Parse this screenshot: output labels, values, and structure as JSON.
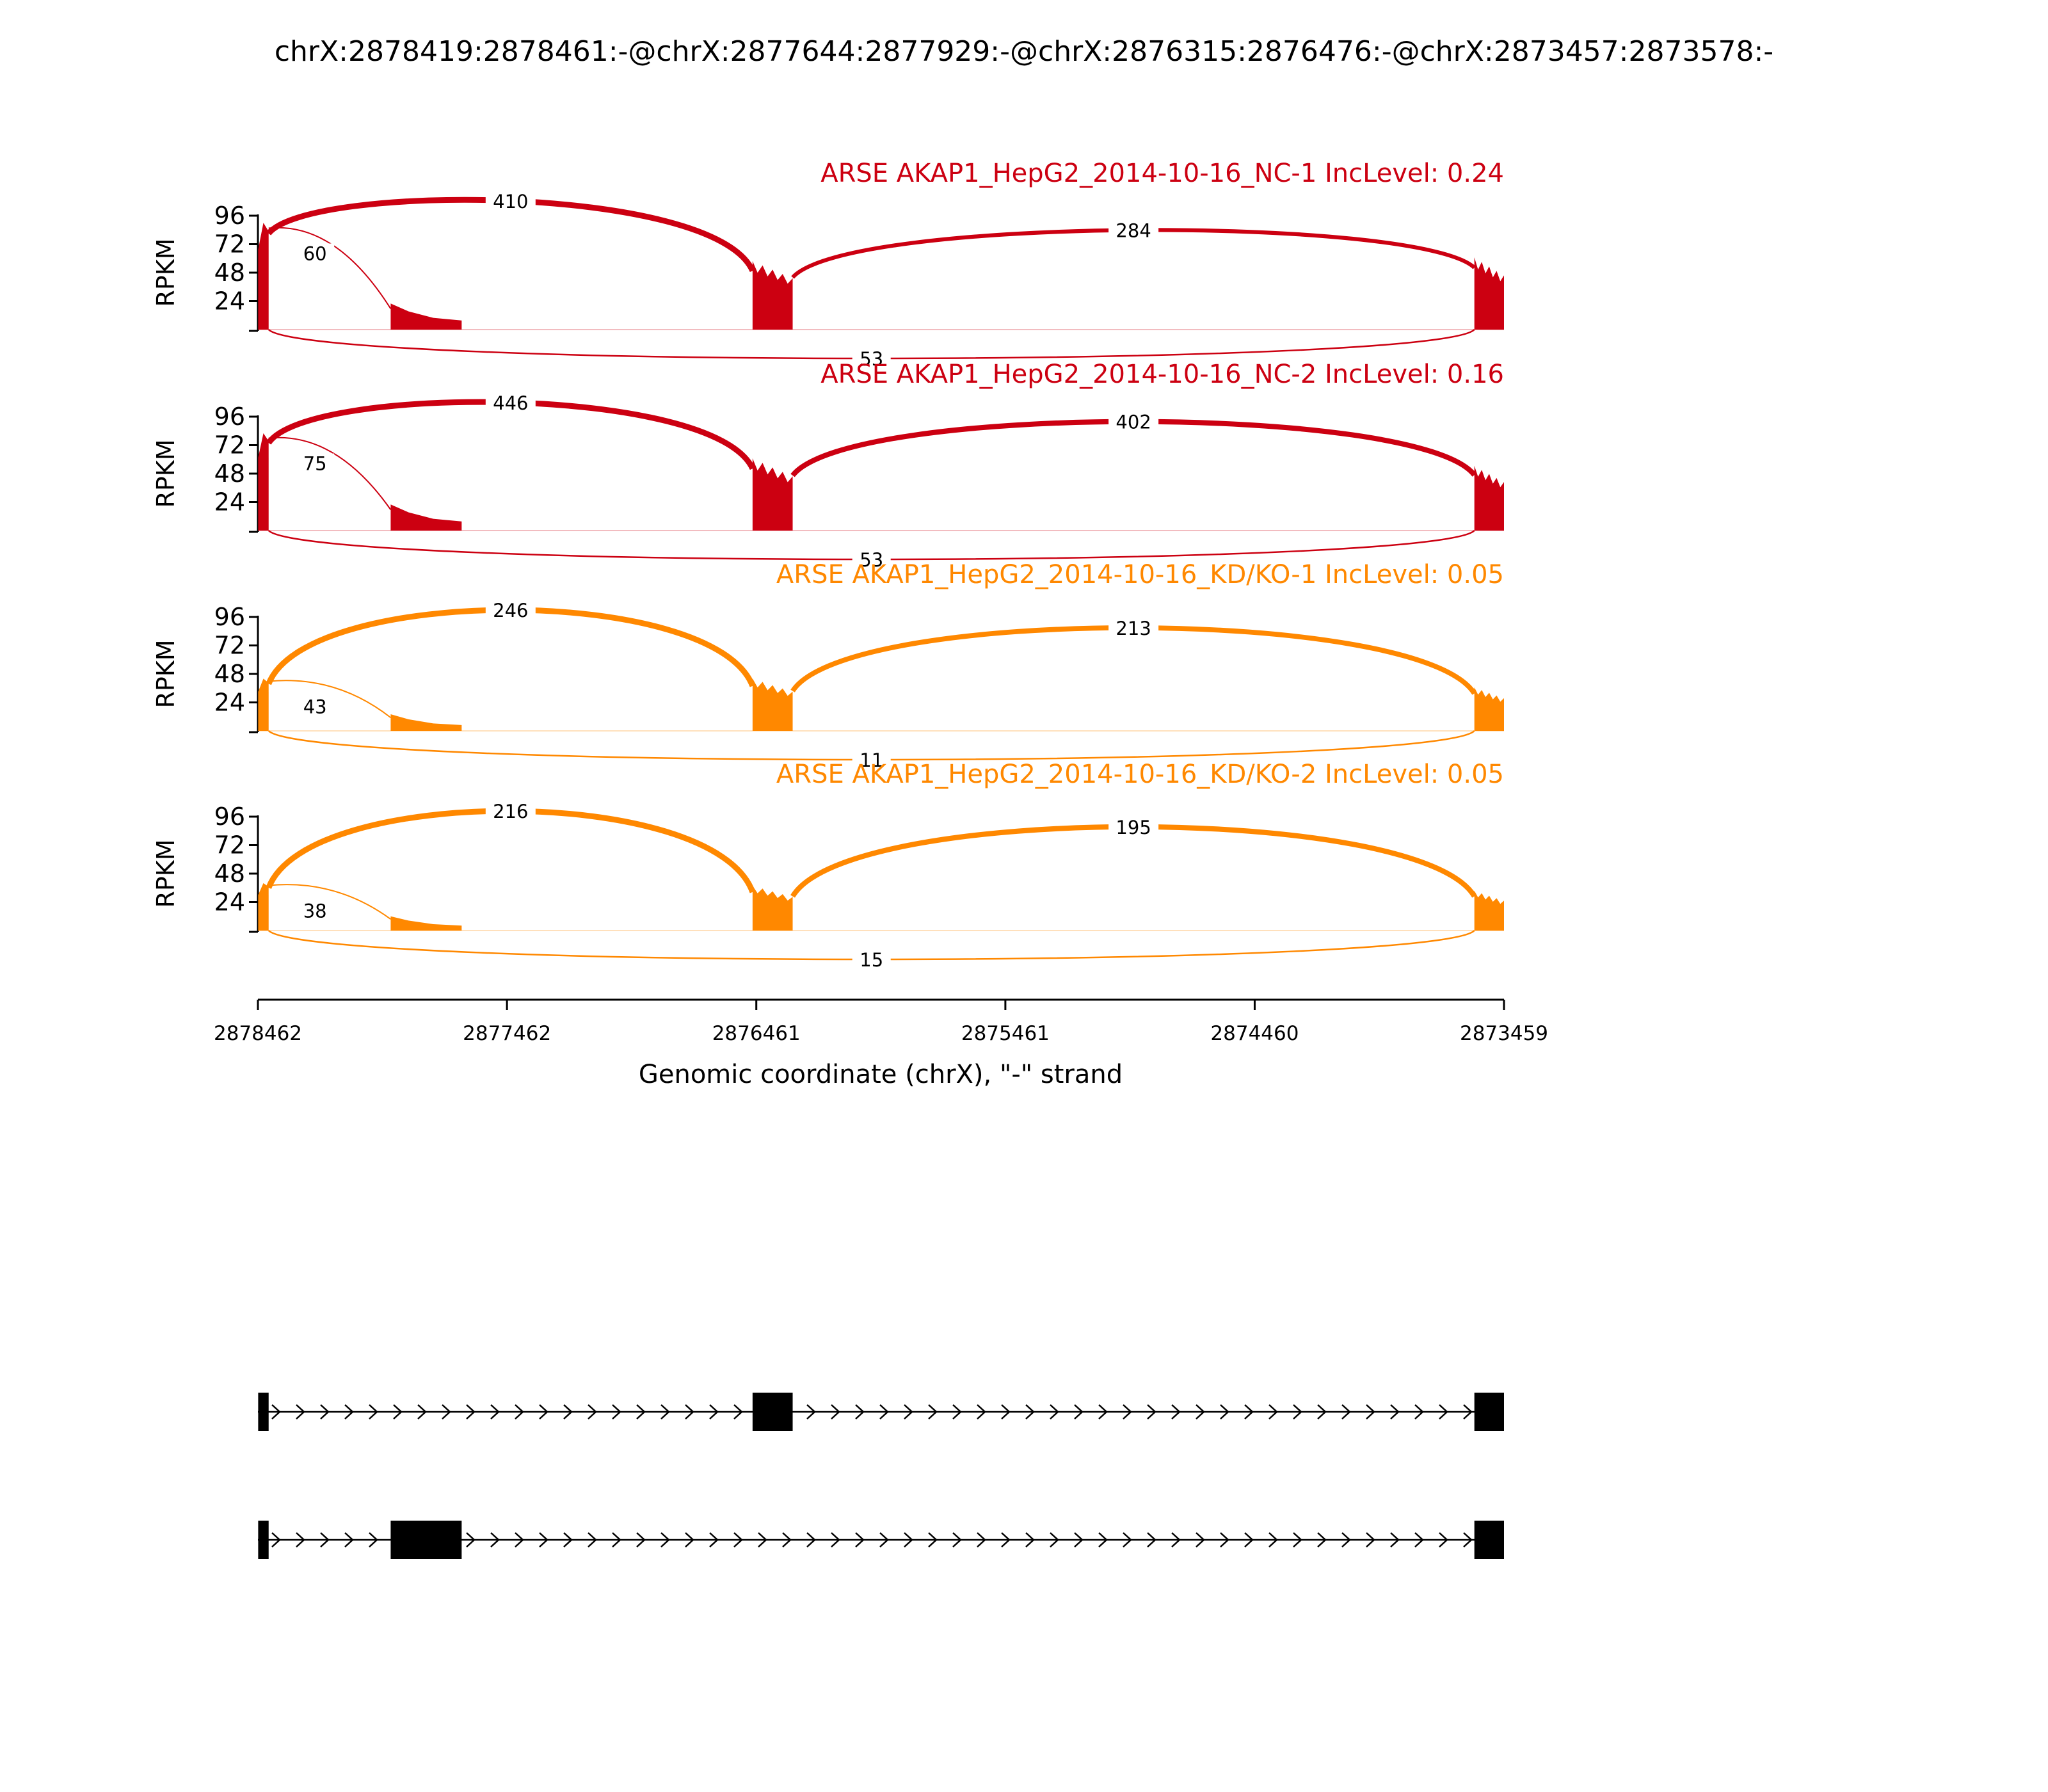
{
  "chart_data": {
    "type": "sashimi",
    "title": "chrX:2878419:2878461:-@chrX:2877644:2877929:-@chrX:2876315:2876476:-@chrX:2873457:2873578:-",
    "ylabel": "RPKM",
    "xlabel": "Genomic coordinate (chrX), \"-\" strand",
    "xlim": [
      2878462,
      2873459
    ],
    "xticks": [
      "2878462",
      "2877462",
      "2876461",
      "2875461",
      "2874460",
      "2873459"
    ],
    "yticks": [
      "24",
      "48",
      "72",
      "96"
    ],
    "ylim": [
      0,
      96
    ],
    "exons": [
      {
        "start": 2878461,
        "end": 2878419
      },
      {
        "start": 2877929,
        "end": 2877644
      },
      {
        "start": 2876476,
        "end": 2876315
      },
      {
        "start": 2873578,
        "end": 2873459
      }
    ],
    "panels": [
      {
        "name": "ARSE AKAP1_HepG2_2014-10-16_NC-1 IncLevel: 0.24",
        "color": "#cc0011",
        "coverage": [
          90,
          22,
          55,
          58
        ],
        "junctions": [
          {
            "from": 2878419,
            "to": 2876476,
            "count": "410",
            "side": "above"
          },
          {
            "from": 2878419,
            "to": 2877929,
            "count": "60",
            "side": "above"
          },
          {
            "from": 2876315,
            "to": 2873578,
            "count": "284",
            "side": "above"
          },
          {
            "from": 2878419,
            "to": 2873578,
            "count": "53",
            "side": "below"
          }
        ]
      },
      {
        "name": "ARSE AKAP1_HepG2_2014-10-16_NC-2 IncLevel: 0.16",
        "color": "#cc0011",
        "coverage": [
          82,
          22,
          58,
          52
        ],
        "junctions": [
          {
            "from": 2878419,
            "to": 2876476,
            "count": "446",
            "side": "above"
          },
          {
            "from": 2878419,
            "to": 2877929,
            "count": "75",
            "side": "above"
          },
          {
            "from": 2876315,
            "to": 2873578,
            "count": "402",
            "side": "above"
          },
          {
            "from": 2878419,
            "to": 2873578,
            "count": "53",
            "side": "below"
          }
        ]
      },
      {
        "name": "ARSE AKAP1_HepG2_2014-10-16_KD/KO-1 IncLevel: 0.05",
        "color": "#ff8800",
        "coverage": [
          44,
          14,
          42,
          35
        ],
        "junctions": [
          {
            "from": 2878419,
            "to": 2876476,
            "count": "246",
            "side": "above"
          },
          {
            "from": 2878419,
            "to": 2877929,
            "count": "43",
            "side": "above"
          },
          {
            "from": 2876315,
            "to": 2873578,
            "count": "213",
            "side": "above"
          },
          {
            "from": 2878419,
            "to": 2873578,
            "count": "11",
            "side": "below"
          }
        ]
      },
      {
        "name": "ARSE AKAP1_HepG2_2014-10-16_KD/KO-2 IncLevel: 0.05",
        "color": "#ff8800",
        "coverage": [
          40,
          12,
          36,
          32
        ],
        "junctions": [
          {
            "from": 2878419,
            "to": 2876476,
            "count": "216",
            "side": "above"
          },
          {
            "from": 2878419,
            "to": 2877929,
            "count": "38",
            "side": "above"
          },
          {
            "from": 2876315,
            "to": 2873578,
            "count": "195",
            "side": "above"
          },
          {
            "from": 2878419,
            "to": 2873578,
            "count": "15",
            "side": "below"
          }
        ]
      }
    ],
    "transcripts": [
      {
        "exons": [
          0,
          2,
          3
        ]
      },
      {
        "exons": [
          0,
          1,
          3
        ]
      }
    ]
  }
}
